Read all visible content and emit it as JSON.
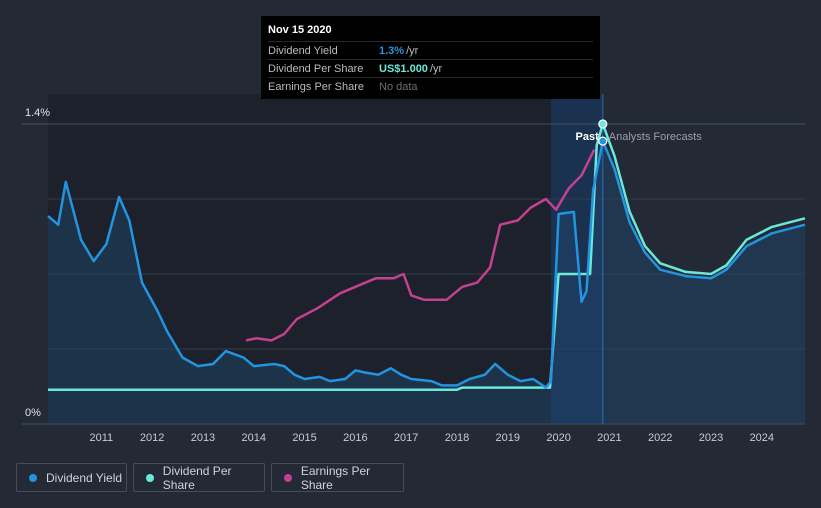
{
  "colors": {
    "dividend_yield": "#2394df",
    "dividend_per_share": "#6ce8da",
    "earnings_per_share": "#c5418f",
    "background": "#232935"
  },
  "tooltip": {
    "date": "Nov 15 2020",
    "rows": [
      {
        "label": "Dividend Yield",
        "value": "1.3%",
        "unit": " /yr"
      },
      {
        "label": "Dividend Per Share",
        "value": "US$1.000",
        "unit": " /yr"
      },
      {
        "label": "Earnings Per Share",
        "value": "No data",
        "unit": ""
      }
    ]
  },
  "legend": [
    {
      "label": "Dividend Yield"
    },
    {
      "label": "Dividend Per Share"
    },
    {
      "label": "Earnings Per Share"
    }
  ],
  "chart_data": {
    "type": "line",
    "y_axis": {
      "top_label": "1.4%",
      "bottom_label": "0%",
      "ylim": [
        0,
        1.4
      ]
    },
    "x_ticks": [
      "2011",
      "2012",
      "2013",
      "2014",
      "2015",
      "2016",
      "2017",
      "2018",
      "2019",
      "2020",
      "2021",
      "2022",
      "2023",
      "2024"
    ],
    "x_range": [
      2009.95,
      2024.85
    ],
    "regions": {
      "past_label": "Past",
      "forecast_label": "Analysts Forecasts",
      "highlight_start": 2019.85,
      "divider": 2020.87
    },
    "grid": true,
    "series": [
      {
        "name": "Dividend Yield",
        "points": [
          [
            2009.95,
            0.97
          ],
          [
            2010.15,
            0.93
          ],
          [
            2010.3,
            1.13
          ],
          [
            2010.6,
            0.86
          ],
          [
            2010.85,
            0.76
          ],
          [
            2011.1,
            0.84
          ],
          [
            2011.35,
            1.06
          ],
          [
            2011.55,
            0.95
          ],
          [
            2011.8,
            0.66
          ],
          [
            2012.1,
            0.53
          ],
          [
            2012.3,
            0.43
          ],
          [
            2012.6,
            0.31
          ],
          [
            2012.9,
            0.27
          ],
          [
            2013.2,
            0.28
          ],
          [
            2013.45,
            0.34
          ],
          [
            2013.8,
            0.31
          ],
          [
            2014.0,
            0.27
          ],
          [
            2014.4,
            0.28
          ],
          [
            2014.6,
            0.27
          ],
          [
            2014.8,
            0.23
          ],
          [
            2015.0,
            0.21
          ],
          [
            2015.3,
            0.22
          ],
          [
            2015.5,
            0.2
          ],
          [
            2015.8,
            0.21
          ],
          [
            2016.0,
            0.25
          ],
          [
            2016.2,
            0.24
          ],
          [
            2016.45,
            0.23
          ],
          [
            2016.7,
            0.26
          ],
          [
            2016.9,
            0.23
          ],
          [
            2017.1,
            0.21
          ],
          [
            2017.5,
            0.2
          ],
          [
            2017.7,
            0.18
          ],
          [
            2018.0,
            0.18
          ],
          [
            2018.25,
            0.21
          ],
          [
            2018.55,
            0.23
          ],
          [
            2018.75,
            0.28
          ],
          [
            2019.0,
            0.23
          ],
          [
            2019.25,
            0.2
          ],
          [
            2019.5,
            0.21
          ],
          [
            2019.75,
            0.17
          ],
          [
            2019.85,
            0.2
          ],
          [
            2020.0,
            0.98
          ],
          [
            2020.3,
            0.99
          ],
          [
            2020.45,
            0.57
          ],
          [
            2020.55,
            0.62
          ],
          [
            2020.68,
            1.09
          ],
          [
            2020.87,
            1.32
          ],
          [
            2021.1,
            1.19
          ],
          [
            2021.4,
            0.94
          ],
          [
            2021.7,
            0.8
          ],
          [
            2022.0,
            0.72
          ],
          [
            2022.5,
            0.69
          ],
          [
            2023.0,
            0.68
          ],
          [
            2023.3,
            0.72
          ],
          [
            2023.7,
            0.83
          ],
          [
            2024.2,
            0.89
          ],
          [
            2024.85,
            0.93
          ]
        ]
      },
      {
        "name": "Dividend Per Share",
        "points": [
          [
            2009.95,
            0.16
          ],
          [
            2018.0,
            0.16
          ],
          [
            2018.1,
            0.17
          ],
          [
            2019.75,
            0.17
          ],
          [
            2019.83,
            0.17
          ],
          [
            2020.0,
            0.7
          ],
          [
            2020.5,
            0.7
          ],
          [
            2020.62,
            0.7
          ],
          [
            2020.75,
            1.3
          ],
          [
            2020.87,
            1.4
          ],
          [
            2021.1,
            1.25
          ],
          [
            2021.4,
            0.99
          ],
          [
            2021.7,
            0.83
          ],
          [
            2022.0,
            0.75
          ],
          [
            2022.5,
            0.71
          ],
          [
            2023.0,
            0.7
          ],
          [
            2023.3,
            0.74
          ],
          [
            2023.7,
            0.86
          ],
          [
            2024.2,
            0.92
          ],
          [
            2024.85,
            0.96
          ]
        ]
      },
      {
        "name": "Earnings Per Share",
        "points": [
          [
            2013.85,
            0.39
          ],
          [
            2014.05,
            0.4
          ],
          [
            2014.35,
            0.39
          ],
          [
            2014.6,
            0.42
          ],
          [
            2014.85,
            0.49
          ],
          [
            2015.25,
            0.54
          ],
          [
            2015.7,
            0.61
          ],
          [
            2016.1,
            0.65
          ],
          [
            2016.4,
            0.68
          ],
          [
            2016.75,
            0.68
          ],
          [
            2016.95,
            0.7
          ],
          [
            2017.1,
            0.6
          ],
          [
            2017.35,
            0.58
          ],
          [
            2017.8,
            0.58
          ],
          [
            2018.1,
            0.64
          ],
          [
            2018.4,
            0.66
          ],
          [
            2018.65,
            0.73
          ],
          [
            2018.85,
            0.93
          ],
          [
            2019.2,
            0.95
          ],
          [
            2019.45,
            1.01
          ],
          [
            2019.75,
            1.05
          ],
          [
            2019.95,
            1.0
          ],
          [
            2020.2,
            1.1
          ],
          [
            2020.45,
            1.16
          ],
          [
            2020.7,
            1.28
          ]
        ]
      }
    ],
    "markers": [
      {
        "series": "Dividend Per Share",
        "x": 2020.87,
        "y": 1.4
      },
      {
        "series": "Dividend Yield",
        "x": 2020.87,
        "y": 1.32
      }
    ]
  }
}
